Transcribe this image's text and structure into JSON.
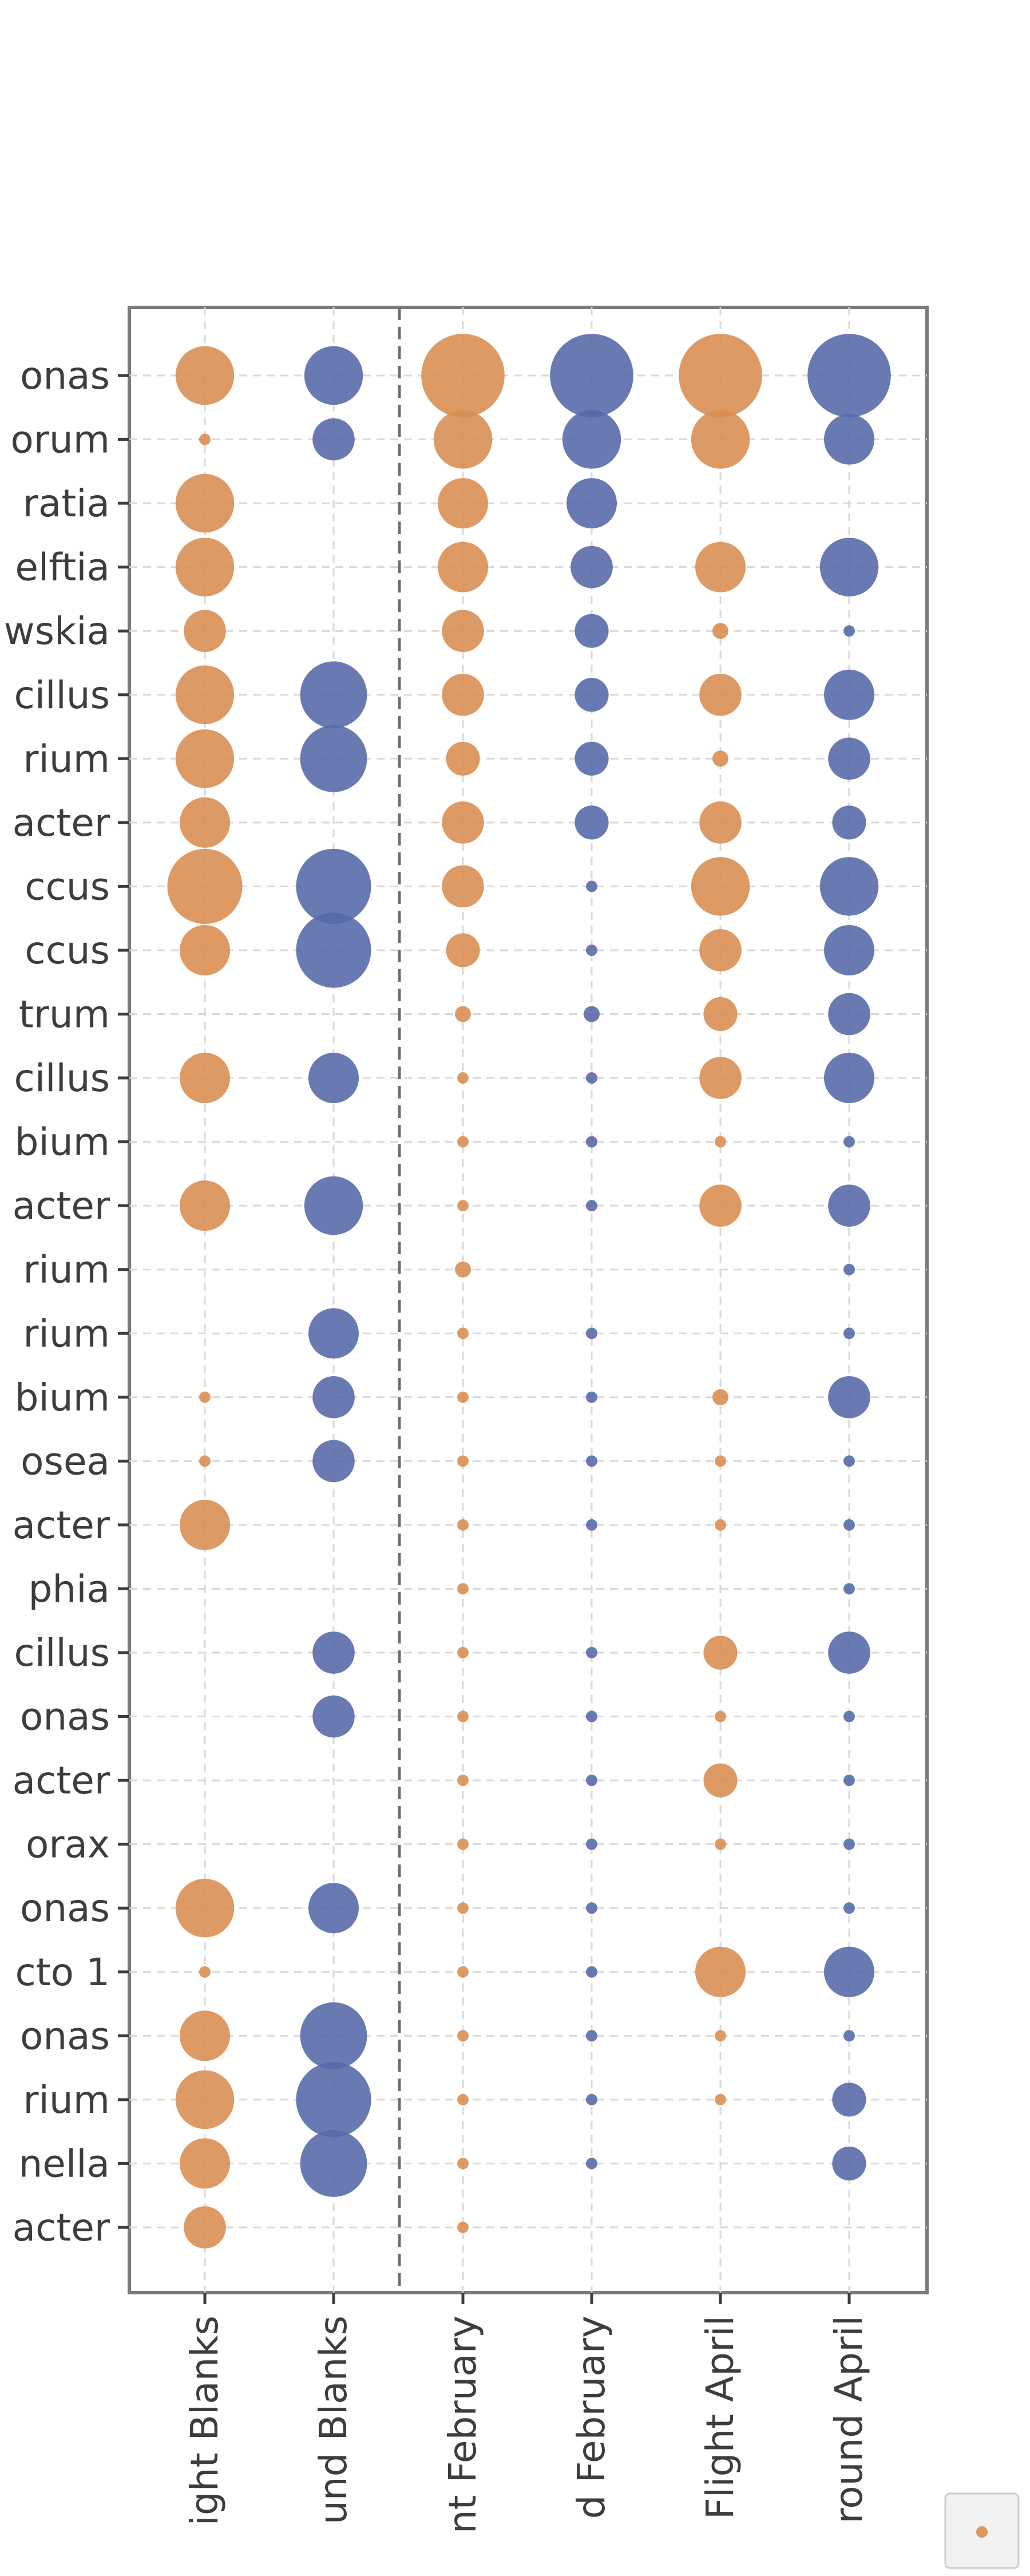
{
  "chart_data": {
    "type": "scatter",
    "subtype": "bubble",
    "title": "",
    "xlabel": "",
    "ylabel": "",
    "grid": true,
    "legend": "bottom-right",
    "colors": {
      "Flight": "#d98c4e",
      "Ground": "#5468a8"
    },
    "y_tick_labels": [
      "onas",
      "orum",
      "ratia",
      "elftia",
      "wskia",
      "cillus",
      "rium",
      "acter",
      "ccus",
      "ccus",
      "trum",
      "cillus",
      "bium",
      "acter",
      "rium",
      "rium",
      "bium",
      "osea",
      "acter",
      "phia",
      "cillus",
      "onas",
      "acter",
      "orax",
      "onas",
      "cto 1",
      "onas",
      "rium",
      "nella",
      "acter"
    ],
    "x_tick_labels": [
      "ight Blanks",
      "und Blanks",
      "nt February",
      "d February",
      "Flight April",
      "round April"
    ],
    "group_separator_after_column": 2,
    "series": [
      {
        "values": [
          [
            6,
            1,
            6,
            6,
            4,
            6,
            6,
            5,
            8,
            5,
            0,
            5,
            0,
            5,
            0,
            0,
            1,
            1,
            5,
            0,
            0,
            0,
            0,
            0,
            6,
            1,
            5,
            6,
            5,
            4
          ],
          [
            6,
            4,
            0,
            0,
            0,
            7,
            7,
            0,
            8,
            8,
            0,
            5,
            0,
            6,
            0,
            5,
            4,
            4,
            0,
            0,
            4,
            4,
            0,
            0,
            5,
            0,
            7,
            8,
            7,
            0
          ],
          [
            9,
            6,
            5,
            5,
            4,
            4,
            3,
            4,
            4,
            3,
            2,
            1,
            1,
            1,
            2,
            1,
            1,
            1,
            1,
            1,
            1,
            1,
            1,
            1,
            1,
            1,
            1,
            1,
            1,
            1
          ],
          [
            9,
            6,
            5,
            4,
            3,
            3,
            3,
            3,
            1,
            1,
            2,
            1,
            1,
            1,
            0,
            1,
            1,
            1,
            1,
            0,
            1,
            1,
            1,
            1,
            1,
            1,
            1,
            1,
            1,
            0
          ],
          [
            9,
            6,
            0,
            5,
            2,
            4,
            2,
            4,
            6,
            4,
            3,
            4,
            1,
            4,
            0,
            0,
            2,
            1,
            1,
            0,
            3,
            1,
            3,
            1,
            0,
            5,
            1,
            1,
            0,
            0
          ],
          [
            9,
            5,
            0,
            6,
            1,
            5,
            4,
            3,
            6,
            5,
            4,
            5,
            1,
            4,
            1,
            1,
            4,
            1,
            1,
            1,
            4,
            1,
            1,
            1,
            1,
            5,
            1,
            3,
            3,
            0
          ]
        ]
      }
    ]
  }
}
